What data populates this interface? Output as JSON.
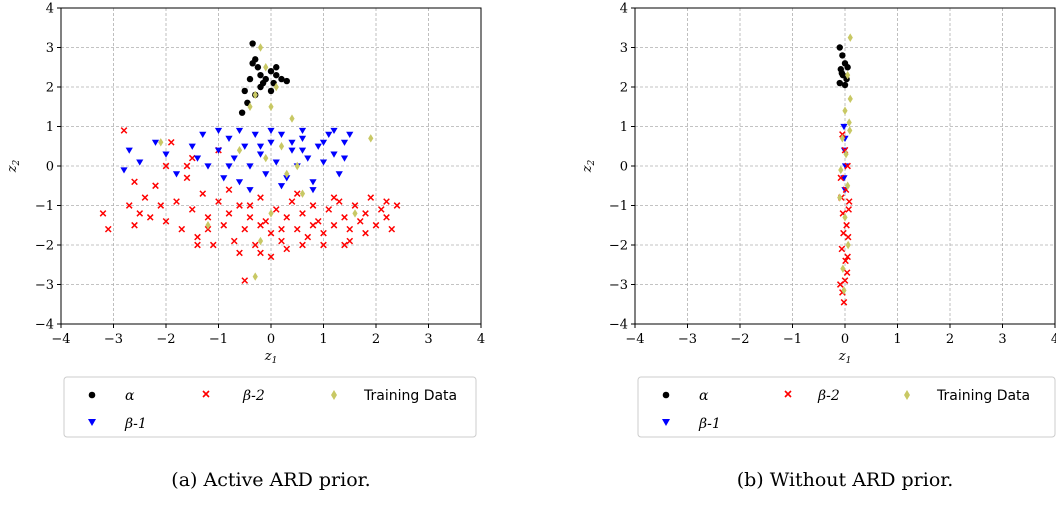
{
  "chart_data": [
    {
      "type": "scatter",
      "caption": "(a) Active ARD prior.",
      "xlabel": "z_1",
      "ylabel": "z_2",
      "xlim": [
        -4,
        4
      ],
      "ylim": [
        -4,
        4
      ],
      "xticks": [
        "−4",
        "−3",
        "−2",
        "−1",
        "0",
        "1",
        "2",
        "3",
        "4"
      ],
      "yticks": [
        "4",
        "3",
        "2",
        "1",
        "0",
        "−1",
        "−2",
        "−3",
        "−4"
      ],
      "grid": true,
      "legend_position": "below",
      "legend": [
        {
          "label": "α",
          "marker": "circle",
          "color": "#000000"
        },
        {
          "label": "β-2",
          "marker": "x",
          "color": "#ff0000"
        },
        {
          "label": "Training Data",
          "marker": "diamond",
          "color": "#c8c864"
        },
        {
          "label": "β-1",
          "marker": "triangle-down",
          "color": "#0000ff"
        }
      ],
      "series": [
        {
          "name": "β-2",
          "color": "#ff0000",
          "marker": "x",
          "points": [
            [
              -3.2,
              -1.2
            ],
            [
              -3.1,
              -1.6
            ],
            [
              -2.8,
              0.9
            ],
            [
              -2.7,
              -1.0
            ],
            [
              -2.6,
              -1.5
            ],
            [
              -2.5,
              -1.2
            ],
            [
              -2.4,
              -0.8
            ],
            [
              -2.3,
              -1.3
            ],
            [
              -2.2,
              -0.5
            ],
            [
              -2.1,
              -1.0
            ],
            [
              -2.0,
              -1.4
            ],
            [
              -1.9,
              0.6
            ],
            [
              -1.8,
              -0.9
            ],
            [
              -1.7,
              -1.6
            ],
            [
              -1.6,
              -0.3
            ],
            [
              -1.5,
              -1.1
            ],
            [
              -1.4,
              -1.8
            ],
            [
              -1.3,
              -0.7
            ],
            [
              -1.2,
              -1.3
            ],
            [
              -1.1,
              -2.0
            ],
            [
              -1.0,
              -0.9
            ],
            [
              -0.9,
              -1.5
            ],
            [
              -0.8,
              -1.2
            ],
            [
              -0.7,
              -1.9
            ],
            [
              -0.6,
              -1.0
            ],
            [
              -0.5,
              -1.6
            ],
            [
              -0.4,
              -1.3
            ],
            [
              -0.3,
              -2.0
            ],
            [
              -0.2,
              -0.8
            ],
            [
              -0.1,
              -1.4
            ],
            [
              0.0,
              -1.7
            ],
            [
              0.1,
              -1.1
            ],
            [
              0.2,
              -1.9
            ],
            [
              0.3,
              -1.3
            ],
            [
              0.4,
              -0.9
            ],
            [
              0.5,
              -1.6
            ],
            [
              0.6,
              -1.2
            ],
            [
              0.7,
              -1.8
            ],
            [
              0.8,
              -1.0
            ],
            [
              0.9,
              -1.4
            ],
            [
              1.0,
              -1.7
            ],
            [
              1.1,
              -1.1
            ],
            [
              1.2,
              -1.5
            ],
            [
              1.3,
              -0.9
            ],
            [
              1.4,
              -1.3
            ],
            [
              1.5,
              -1.6
            ],
            [
              1.6,
              -1.0
            ],
            [
              1.7,
              -1.4
            ],
            [
              1.8,
              -1.2
            ],
            [
              1.9,
              -0.8
            ],
            [
              2.0,
              -1.5
            ],
            [
              2.1,
              -1.1
            ],
            [
              2.2,
              -1.3
            ],
            [
              2.3,
              -1.6
            ],
            [
              2.4,
              -1.0
            ],
            [
              -0.5,
              -2.9
            ],
            [
              -0.2,
              -2.2
            ],
            [
              0.3,
              -2.1
            ],
            [
              -1.5,
              0.2
            ],
            [
              -2.0,
              0.0
            ],
            [
              -0.8,
              -0.6
            ],
            [
              0.5,
              -0.7
            ],
            [
              1.0,
              -2.0
            ],
            [
              1.5,
              -1.9
            ],
            [
              -1.2,
              -1.6
            ],
            [
              -0.4,
              -1.0
            ],
            [
              0.0,
              -2.3
            ],
            [
              0.8,
              -1.5
            ],
            [
              1.2,
              -0.8
            ],
            [
              -2.6,
              -0.4
            ],
            [
              -1.0,
              0.4
            ],
            [
              -1.6,
              0.0
            ],
            [
              -0.2,
              -1.5
            ],
            [
              0.6,
              -2.0
            ],
            [
              1.8,
              -1.7
            ],
            [
              -1.4,
              -2.0
            ],
            [
              -0.6,
              -2.2
            ],
            [
              0.2,
              -1.6
            ],
            [
              1.4,
              -2.0
            ],
            [
              2.2,
              -0.9
            ]
          ]
        },
        {
          "name": "β-1",
          "color": "#0000ff",
          "marker": "triangle-down",
          "points": [
            [
              -2.8,
              -0.1
            ],
            [
              -2.7,
              0.4
            ],
            [
              -2.5,
              0.1
            ],
            [
              -2.2,
              0.6
            ],
            [
              -2.0,
              0.3
            ],
            [
              -1.8,
              -0.2
            ],
            [
              -1.5,
              0.5
            ],
            [
              -1.3,
              0.8
            ],
            [
              -1.2,
              0.0
            ],
            [
              -1.0,
              0.4
            ],
            [
              -0.9,
              -0.3
            ],
            [
              -0.8,
              0.7
            ],
            [
              -0.7,
              0.2
            ],
            [
              -0.6,
              -0.4
            ],
            [
              -0.5,
              0.5
            ],
            [
              -0.4,
              0.0
            ],
            [
              -0.3,
              0.8
            ],
            [
              -0.2,
              0.3
            ],
            [
              -0.1,
              -0.2
            ],
            [
              0.0,
              0.6
            ],
            [
              0.1,
              0.1
            ],
            [
              0.2,
              0.8
            ],
            [
              0.3,
              -0.3
            ],
            [
              0.4,
              0.4
            ],
            [
              0.5,
              0.0
            ],
            [
              0.6,
              0.7
            ],
            [
              0.7,
              0.2
            ],
            [
              0.8,
              -0.4
            ],
            [
              0.9,
              0.5
            ],
            [
              1.0,
              0.1
            ],
            [
              1.1,
              0.8
            ],
            [
              1.2,
              0.3
            ],
            [
              1.3,
              -0.2
            ],
            [
              1.4,
              0.6
            ],
            [
              1.5,
              0.8
            ],
            [
              -0.6,
              0.9
            ],
            [
              0.0,
              0.9
            ],
            [
              0.6,
              0.9
            ],
            [
              1.2,
              0.9
            ],
            [
              -1.0,
              0.9
            ],
            [
              -0.4,
              -0.6
            ],
            [
              0.2,
              -0.5
            ],
            [
              0.8,
              -0.6
            ],
            [
              -1.4,
              0.2
            ],
            [
              -0.8,
              0.0
            ],
            [
              0.4,
              0.6
            ],
            [
              1.0,
              0.6
            ],
            [
              -0.2,
              0.5
            ],
            [
              0.6,
              0.4
            ],
            [
              1.4,
              0.2
            ]
          ]
        },
        {
          "name": "α",
          "color": "#000000",
          "marker": "circle",
          "points": [
            [
              -0.35,
              3.1
            ],
            [
              -0.3,
              2.7
            ],
            [
              -0.25,
              2.5
            ],
            [
              -0.2,
              2.3
            ],
            [
              -0.1,
              2.2
            ],
            [
              0.0,
              2.4
            ],
            [
              0.05,
              2.1
            ],
            [
              0.1,
              2.3
            ],
            [
              -0.4,
              2.2
            ],
            [
              -0.5,
              1.9
            ],
            [
              -0.45,
              1.6
            ],
            [
              -0.3,
              1.8
            ],
            [
              -0.2,
              2.0
            ],
            [
              0.0,
              1.9
            ],
            [
              0.1,
              2.5
            ],
            [
              0.2,
              2.2
            ],
            [
              -0.55,
              1.35
            ],
            [
              -0.35,
              2.6
            ],
            [
              -0.15,
              2.1
            ],
            [
              0.3,
              2.15
            ]
          ]
        },
        {
          "name": "Training Data",
          "color": "#c8c864",
          "marker": "diamond",
          "points": [
            [
              -0.2,
              3.0
            ],
            [
              -0.1,
              2.5
            ],
            [
              -0.3,
              1.8
            ],
            [
              0.0,
              1.5
            ],
            [
              -0.4,
              1.5
            ],
            [
              0.1,
              2.0
            ],
            [
              0.4,
              1.2
            ],
            [
              0.2,
              0.5
            ],
            [
              -0.1,
              0.2
            ],
            [
              0.3,
              -0.2
            ],
            [
              1.9,
              0.7
            ],
            [
              -2.1,
              0.6
            ],
            [
              -0.3,
              -2.8
            ],
            [
              -0.2,
              -1.9
            ],
            [
              0.5,
              0.0
            ],
            [
              -0.6,
              0.4
            ],
            [
              0.6,
              -0.7
            ],
            [
              1.6,
              -1.2
            ],
            [
              -1.2,
              -1.5
            ],
            [
              0.0,
              -1.2
            ]
          ]
        }
      ]
    },
    {
      "type": "scatter",
      "caption": "(b) Without ARD prior.",
      "xlabel": "z_1",
      "ylabel": "z_2",
      "xlim": [
        -4,
        4
      ],
      "ylim": [
        -4,
        4
      ],
      "xticks": [
        "−4",
        "−3",
        "−2",
        "−1",
        "0",
        "1",
        "2",
        "3",
        "4"
      ],
      "yticks": [
        "4",
        "3",
        "2",
        "1",
        "0",
        "−1",
        "−2",
        "−3",
        "−4"
      ],
      "grid": true,
      "legend_position": "below",
      "legend": [
        {
          "label": "α",
          "marker": "circle",
          "color": "#000000"
        },
        {
          "label": "β-2",
          "marker": "x",
          "color": "#ff0000"
        },
        {
          "label": "Training Data",
          "marker": "diamond",
          "color": "#c8c864"
        },
        {
          "label": "β-1",
          "marker": "triangle-down",
          "color": "#0000ff"
        }
      ],
      "series": [
        {
          "name": "β-1",
          "color": "#0000ff",
          "marker": "triangle-down",
          "points": [
            [
              -0.02,
              1.0
            ],
            [
              0.0,
              0.7
            ],
            [
              -0.01,
              0.4
            ],
            [
              0.01,
              0.0
            ],
            [
              -0.02,
              -0.3
            ],
            [
              0.0,
              -0.6
            ]
          ]
        },
        {
          "name": "β-2",
          "color": "#ff0000",
          "marker": "x",
          "points": [
            [
              -0.05,
              0.8
            ],
            [
              0.0,
              0.4
            ],
            [
              0.05,
              0.0
            ],
            [
              -0.08,
              -0.3
            ],
            [
              0.02,
              -0.6
            ],
            [
              0.08,
              -0.9
            ],
            [
              -0.04,
              -1.2
            ],
            [
              0.03,
              -1.5
            ],
            [
              0.06,
              -1.8
            ],
            [
              -0.06,
              -2.1
            ],
            [
              0.01,
              -2.4
            ],
            [
              0.04,
              -2.7
            ],
            [
              -0.09,
              -3.0
            ],
            [
              -0.05,
              -3.2
            ],
            [
              -0.02,
              -3.45
            ],
            [
              0.0,
              -2.9
            ],
            [
              0.07,
              -1.1
            ],
            [
              -0.03,
              -1.7
            ],
            [
              0.05,
              -2.3
            ],
            [
              -0.07,
              -0.8
            ]
          ]
        },
        {
          "name": "α",
          "color": "#000000",
          "marker": "circle",
          "points": [
            [
              -0.1,
              3.0
            ],
            [
              -0.05,
              2.8
            ],
            [
              0.0,
              2.6
            ],
            [
              -0.08,
              2.45
            ],
            [
              0.05,
              2.5
            ],
            [
              -0.04,
              2.3
            ],
            [
              0.03,
              2.2
            ],
            [
              -0.1,
              2.1
            ],
            [
              0.0,
              2.05
            ],
            [
              -0.06,
              2.35
            ]
          ]
        },
        {
          "name": "Training Data",
          "color": "#c8c864",
          "marker": "diamond",
          "points": [
            [
              0.1,
              3.25
            ],
            [
              0.05,
              2.3
            ],
            [
              0.1,
              1.7
            ],
            [
              0.0,
              1.4
            ],
            [
              0.08,
              1.1
            ],
            [
              -0.05,
              0.7
            ],
            [
              0.02,
              0.3
            ],
            [
              -0.08,
              -0.1
            ],
            [
              0.05,
              -0.5
            ],
            [
              -0.1,
              -0.8
            ],
            [
              0.0,
              -1.3
            ],
            [
              0.06,
              -2.0
            ],
            [
              -0.04,
              -2.6
            ],
            [
              -0.02,
              -3.15
            ],
            [
              0.09,
              0.9
            ]
          ]
        }
      ]
    }
  ]
}
